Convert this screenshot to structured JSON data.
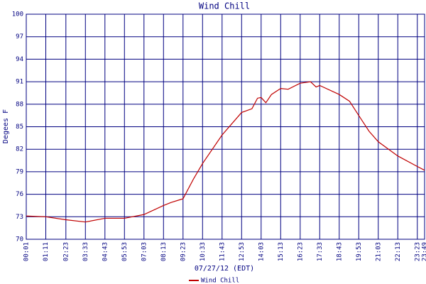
{
  "chart_data": {
    "type": "line",
    "title": "Wind Chill",
    "y_label": "Degees F",
    "x_label": "07/27/12 (EDT)",
    "xlim": [
      1,
      1429
    ],
    "ylim": [
      70,
      100
    ],
    "yticks": [
      70,
      73,
      76,
      79,
      82,
      85,
      88,
      91,
      94,
      97,
      100
    ],
    "xticks": [
      {
        "value": 1,
        "label": "00:01"
      },
      {
        "value": 71,
        "label": "01:11"
      },
      {
        "value": 143,
        "label": "02:23"
      },
      {
        "value": 213,
        "label": "03:33"
      },
      {
        "value": 283,
        "label": "04:43"
      },
      {
        "value": 353,
        "label": "05:53"
      },
      {
        "value": 423,
        "label": "07:03"
      },
      {
        "value": 493,
        "label": "08:13"
      },
      {
        "value": 563,
        "label": "09:23"
      },
      {
        "value": 633,
        "label": "10:33"
      },
      {
        "value": 703,
        "label": "11:43"
      },
      {
        "value": 773,
        "label": "12:53"
      },
      {
        "value": 843,
        "label": "14:03"
      },
      {
        "value": 913,
        "label": "15:13"
      },
      {
        "value": 983,
        "label": "16:23"
      },
      {
        "value": 1053,
        "label": "17:33"
      },
      {
        "value": 1123,
        "label": "18:43"
      },
      {
        "value": 1193,
        "label": "19:53"
      },
      {
        "value": 1263,
        "label": "21:03"
      },
      {
        "value": 1333,
        "label": "22:13"
      },
      {
        "value": 1403,
        "label": "23:23"
      },
      {
        "value": 1429,
        "label": "23:49"
      }
    ],
    "grid": true,
    "x": [
      1,
      71,
      143,
      213,
      283,
      353,
      423,
      493,
      520,
      563,
      600,
      633,
      703,
      773,
      810,
      830,
      843,
      860,
      880,
      913,
      940,
      983,
      1020,
      1040,
      1053,
      1123,
      1160,
      1193,
      1230,
      1263,
      1333,
      1403,
      1429
    ],
    "series": [
      {
        "name": "Wind Chill",
        "color": "#c00000",
        "values": [
          73.1,
          73.0,
          72.6,
          72.3,
          72.8,
          72.8,
          73.3,
          74.5,
          74.9,
          75.4,
          78.0,
          80.1,
          83.9,
          86.9,
          87.4,
          88.8,
          88.9,
          88.2,
          89.3,
          90.1,
          90.0,
          90.8,
          91.0,
          90.3,
          90.5,
          89.3,
          88.4,
          86.5,
          84.4,
          83.0,
          81.1,
          79.7,
          79.2
        ]
      }
    ]
  }
}
